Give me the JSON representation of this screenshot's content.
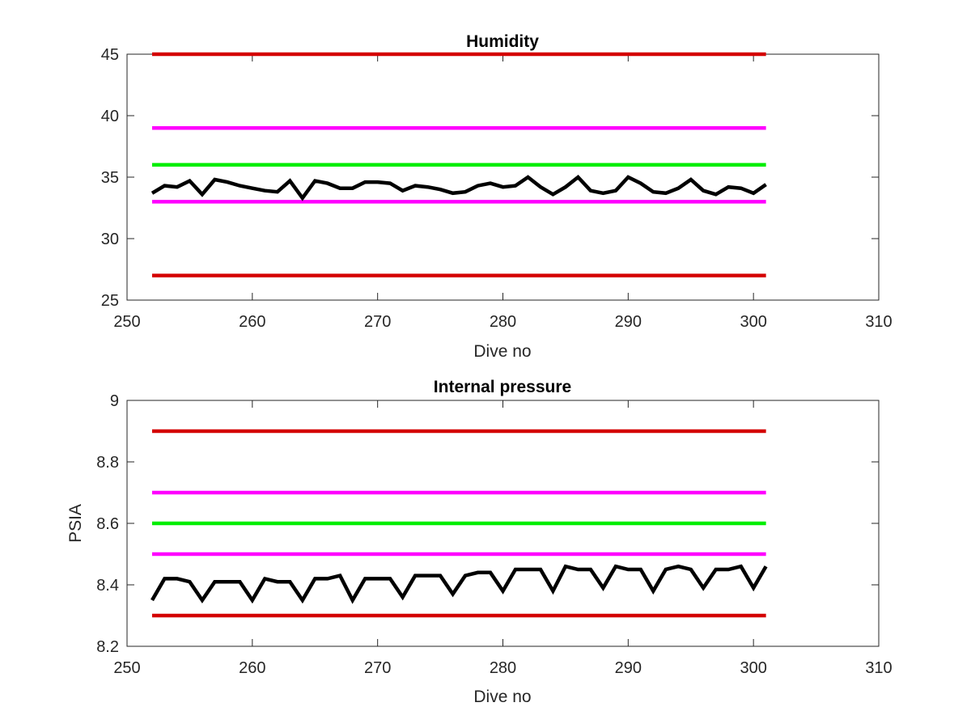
{
  "chart_data": [
    {
      "type": "line",
      "title": "Humidity",
      "xlabel": "Dive no",
      "ylabel": "",
      "xlim": [
        250,
        310
      ],
      "ylim": [
        25,
        45
      ],
      "xticks": [
        250,
        260,
        270,
        280,
        290,
        300,
        310
      ],
      "yticks": [
        25,
        30,
        35,
        40,
        45
      ],
      "grid": false,
      "legend": "none",
      "thresholds": [
        {
          "y": 45,
          "x": [
            252,
            301
          ],
          "color": "#d40000"
        },
        {
          "y": 39,
          "x": [
            252,
            301
          ],
          "color": "#ff00ff"
        },
        {
          "y": 36,
          "x": [
            252,
            301
          ],
          "color": "#00ee00"
        },
        {
          "y": 33,
          "x": [
            252,
            301
          ],
          "color": "#ff00ff"
        },
        {
          "y": 27,
          "x": [
            252,
            301
          ],
          "color": "#d40000"
        }
      ],
      "series": [
        {
          "color": "#000000",
          "x": [
            252,
            253,
            254,
            255,
            256,
            257,
            258,
            259,
            260,
            261,
            262,
            263,
            264,
            265,
            266,
            267,
            268,
            269,
            270,
            271,
            272,
            273,
            274,
            275,
            276,
            277,
            278,
            279,
            280,
            281,
            282,
            283,
            284,
            285,
            286,
            287,
            288,
            289,
            290,
            291,
            292,
            293,
            294,
            295,
            296,
            297,
            298,
            299,
            300,
            301
          ],
          "values": [
            33.7,
            34.3,
            34.2,
            34.7,
            33.6,
            34.8,
            34.6,
            34.3,
            34.1,
            33.9,
            33.8,
            34.7,
            33.3,
            34.7,
            34.5,
            34.1,
            34.1,
            34.6,
            34.6,
            34.5,
            33.9,
            34.3,
            34.2,
            34.0,
            33.7,
            33.8,
            34.3,
            34.5,
            34.2,
            34.3,
            35.0,
            34.2,
            33.6,
            34.2,
            35.0,
            33.9,
            33.7,
            33.9,
            35.0,
            34.5,
            33.8,
            33.7,
            34.1,
            34.8,
            33.9,
            33.6,
            34.2,
            34.1,
            33.7,
            34.4
          ]
        }
      ]
    },
    {
      "type": "line",
      "title": "Internal pressure",
      "xlabel": "Dive no",
      "ylabel": "PSIA",
      "xlim": [
        250,
        310
      ],
      "ylim": [
        8.2,
        9.0
      ],
      "xticks": [
        250,
        260,
        270,
        280,
        290,
        300,
        310
      ],
      "yticks": [
        8.2,
        8.4,
        8.6,
        8.8,
        9.0
      ],
      "ytick_labels": [
        "8.2",
        "8.4",
        "8.6",
        "8.8",
        "9"
      ],
      "grid": false,
      "legend": "none",
      "thresholds": [
        {
          "y": 8.9,
          "x": [
            252,
            301
          ],
          "color": "#d40000"
        },
        {
          "y": 8.7,
          "x": [
            252,
            301
          ],
          "color": "#ff00ff"
        },
        {
          "y": 8.6,
          "x": [
            252,
            301
          ],
          "color": "#00ee00"
        },
        {
          "y": 8.5,
          "x": [
            252,
            301
          ],
          "color": "#ff00ff"
        },
        {
          "y": 8.3,
          "x": [
            252,
            301
          ],
          "color": "#d40000"
        }
      ],
      "series": [
        {
          "color": "#000000",
          "x": [
            252,
            253,
            254,
            255,
            256,
            257,
            258,
            259,
            260,
            261,
            262,
            263,
            264,
            265,
            266,
            267,
            268,
            269,
            270,
            271,
            272,
            273,
            274,
            275,
            276,
            277,
            278,
            279,
            280,
            281,
            282,
            283,
            284,
            285,
            286,
            287,
            288,
            289,
            290,
            291,
            292,
            293,
            294,
            295,
            296,
            297,
            298,
            299,
            300,
            301
          ],
          "values": [
            8.35,
            8.42,
            8.42,
            8.41,
            8.35,
            8.41,
            8.41,
            8.41,
            8.35,
            8.42,
            8.41,
            8.41,
            8.35,
            8.42,
            8.42,
            8.43,
            8.35,
            8.42,
            8.42,
            8.42,
            8.36,
            8.43,
            8.43,
            8.43,
            8.37,
            8.43,
            8.44,
            8.44,
            8.38,
            8.45,
            8.45,
            8.45,
            8.38,
            8.46,
            8.45,
            8.45,
            8.39,
            8.46,
            8.45,
            8.45,
            8.38,
            8.45,
            8.46,
            8.45,
            8.39,
            8.45,
            8.45,
            8.46,
            8.39,
            8.46
          ]
        }
      ]
    }
  ]
}
